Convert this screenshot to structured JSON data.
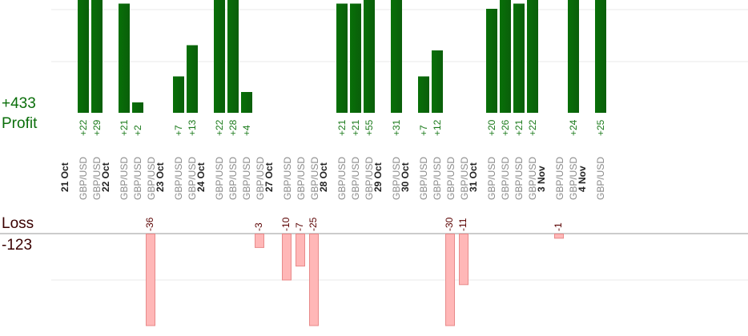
{
  "chart_data": {
    "type": "bar",
    "colors": {
      "profit": "#0a5e0a",
      "profit_label": "#1a7a1a",
      "loss_fill": "#ffb7b7",
      "loss_border": "#e88a8a",
      "loss_label": "#5a0000",
      "pair_label": "#8a8a8a",
      "date_label": "#222222",
      "grid": "#e8e8e8",
      "axis": "#999999",
      "profit_text": "#0a6e0a",
      "loss_text": "#3a0000"
    },
    "summary": {
      "profit_total": "+433",
      "profit_label": "Profit",
      "loss_label": "Loss",
      "loss_total": "-123"
    },
    "dates": [
      "21 Oct",
      "22 Oct",
      "23 Oct",
      "24 Oct",
      "27 Oct",
      "28 Oct",
      "29 Oct",
      "30 Oct",
      "31 Oct",
      "3 Nov",
      "4 Nov"
    ],
    "trades": [
      {
        "day": 0,
        "pair": "GBP/USD",
        "label": "+22",
        "value": 22
      },
      {
        "day": 0,
        "pair": "GBP/USD",
        "label": "+29",
        "value": 29
      },
      {
        "day": 1,
        "pair": "GBP/USD",
        "label": "+21",
        "value": 21
      },
      {
        "day": 1,
        "pair": "GBP/USD",
        "label": "+2",
        "value": 2
      },
      {
        "day": 1,
        "pair": "GBP/USD",
        "label": "-36",
        "value": -36
      },
      {
        "day": 2,
        "pair": "GBP/USD",
        "label": "+7",
        "value": 7
      },
      {
        "day": 2,
        "pair": "GBP/USD",
        "label": "+13",
        "value": 13
      },
      {
        "day": 3,
        "pair": "GBP/USD",
        "label": "+22",
        "value": 22
      },
      {
        "day": 3,
        "pair": "GBP/USD",
        "label": "+28",
        "value": 28
      },
      {
        "day": 3,
        "pair": "GBP/USD",
        "label": "+4",
        "value": 4
      },
      {
        "day": 3,
        "pair": "GBP/USD",
        "label": "-3",
        "value": -3
      },
      {
        "day": 4,
        "pair": "GBP/USD",
        "label": "-10",
        "value": -10
      },
      {
        "day": 4,
        "pair": "GBP/USD",
        "label": "-7",
        "value": -7
      },
      {
        "day": 4,
        "pair": "GBP/USD",
        "label": "-25",
        "value": -25
      },
      {
        "day": 5,
        "pair": "GBP/USD",
        "label": "+21",
        "value": 21
      },
      {
        "day": 5,
        "pair": "GBP/USD",
        "label": "+21",
        "value": 21
      },
      {
        "day": 5,
        "pair": "GBP/USD",
        "label": "+55",
        "value": 55
      },
      {
        "day": 6,
        "pair": "GBP/USD",
        "label": "+31",
        "value": 31
      },
      {
        "day": 7,
        "pair": "GBP/USD",
        "label": "+7",
        "value": 7
      },
      {
        "day": 7,
        "pair": "GBP/USD",
        "label": "+12",
        "value": 12
      },
      {
        "day": 7,
        "pair": "GBP/USD",
        "label": "-30",
        "value": -30
      },
      {
        "day": 7,
        "pair": "GBP/USD",
        "label": "-11",
        "value": -11
      },
      {
        "day": 8,
        "pair": "GBP/USD",
        "label": "+20",
        "value": 20
      },
      {
        "day": 8,
        "pair": "GBP/USD",
        "label": "+26",
        "value": 26
      },
      {
        "day": 8,
        "pair": "GBP/USD",
        "label": "+21",
        "value": 21
      },
      {
        "day": 8,
        "pair": "GBP/USD",
        "label": "+22",
        "value": 22
      },
      {
        "day": 9,
        "pair": "GBP/USD",
        "label": "-1",
        "value": -1
      },
      {
        "day": 9,
        "pair": "GBP/USD",
        "label": "+24",
        "value": 24
      },
      {
        "day": 10,
        "pair": "GBP/USD",
        "label": "+25",
        "value": 25
      }
    ],
    "ylim_profit": [
      0,
      25
    ],
    "ylim_loss": [
      -20,
      0
    ],
    "grid": true
  }
}
